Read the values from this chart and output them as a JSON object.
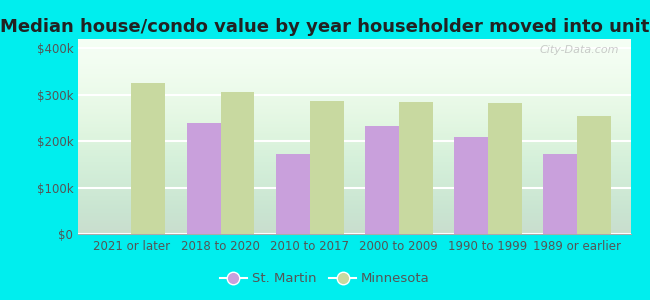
{
  "title": "Median house/condo value by year householder moved into unit",
  "categories": [
    "2021 or later",
    "2018 to 2020",
    "2010 to 2017",
    "2000 to 2009",
    "1990 to 1999",
    "1989 or earlier"
  ],
  "st_martin": [
    null,
    240000,
    172000,
    232000,
    210000,
    172000
  ],
  "minnesota": [
    325000,
    305000,
    287000,
    285000,
    283000,
    255000
  ],
  "st_martin_color": "#c9a0dc",
  "minnesota_color": "#c8d9a0",
  "background_color": "#00eeee",
  "plot_bg_top": "#eaf5ea",
  "plot_bg_bottom": "#f5fff5",
  "ylabel_ticks": [
    "$0",
    "$100k",
    "$200k",
    "$300k",
    "$400k"
  ],
  "ytick_values": [
    0,
    100000,
    200000,
    300000,
    400000
  ],
  "ylim": [
    0,
    420000
  ],
  "bar_width": 0.38,
  "title_fontsize": 13,
  "tick_fontsize": 8.5,
  "legend_fontsize": 9.5,
  "watermark": "City-Data.com"
}
